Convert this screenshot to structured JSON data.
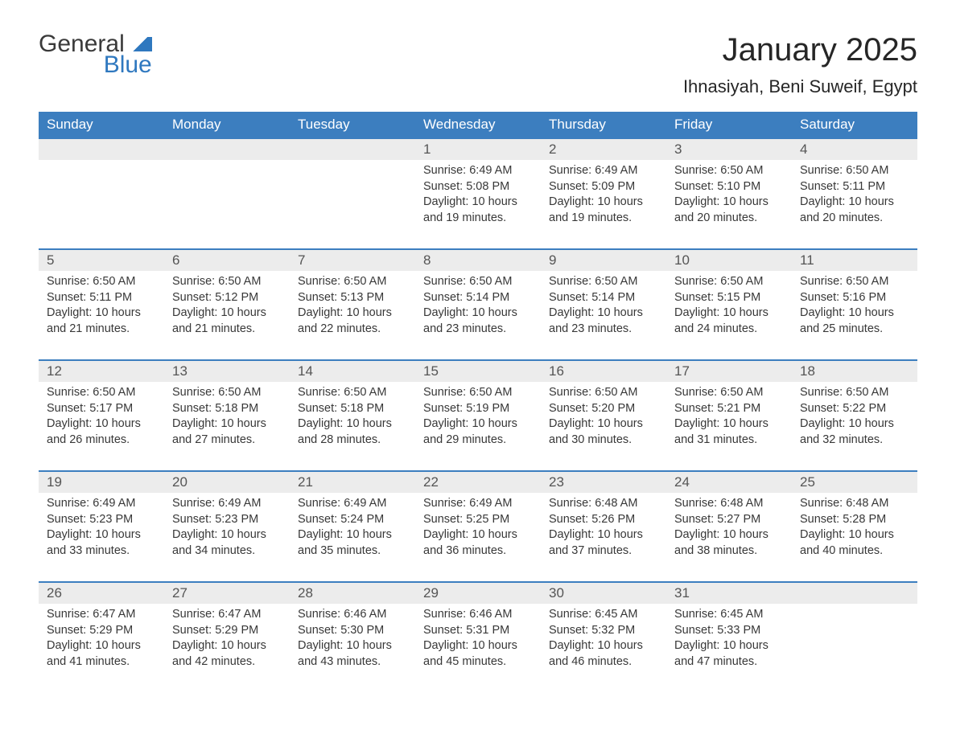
{
  "logo": {
    "line1": "General",
    "line2": "Blue"
  },
  "title": "January 2025",
  "location": "Ihnasiyah, Beni Suweif, Egypt",
  "colors": {
    "header_bg": "#3c7ebf",
    "header_text": "#ffffff",
    "daynum_bg": "#ececec",
    "text": "#333333",
    "logo_blue": "#2f78bf"
  },
  "weekdays": [
    "Sunday",
    "Monday",
    "Tuesday",
    "Wednesday",
    "Thursday",
    "Friday",
    "Saturday"
  ],
  "weeks": [
    [
      {
        "empty": true
      },
      {
        "empty": true
      },
      {
        "empty": true
      },
      {
        "day": "1",
        "sunrise": "Sunrise: 6:49 AM",
        "sunset": "Sunset: 5:08 PM",
        "dl1": "Daylight: 10 hours",
        "dl2": "and 19 minutes."
      },
      {
        "day": "2",
        "sunrise": "Sunrise: 6:49 AM",
        "sunset": "Sunset: 5:09 PM",
        "dl1": "Daylight: 10 hours",
        "dl2": "and 19 minutes."
      },
      {
        "day": "3",
        "sunrise": "Sunrise: 6:50 AM",
        "sunset": "Sunset: 5:10 PM",
        "dl1": "Daylight: 10 hours",
        "dl2": "and 20 minutes."
      },
      {
        "day": "4",
        "sunrise": "Sunrise: 6:50 AM",
        "sunset": "Sunset: 5:11 PM",
        "dl1": "Daylight: 10 hours",
        "dl2": "and 20 minutes."
      }
    ],
    [
      {
        "day": "5",
        "sunrise": "Sunrise: 6:50 AM",
        "sunset": "Sunset: 5:11 PM",
        "dl1": "Daylight: 10 hours",
        "dl2": "and 21 minutes."
      },
      {
        "day": "6",
        "sunrise": "Sunrise: 6:50 AM",
        "sunset": "Sunset: 5:12 PM",
        "dl1": "Daylight: 10 hours",
        "dl2": "and 21 minutes."
      },
      {
        "day": "7",
        "sunrise": "Sunrise: 6:50 AM",
        "sunset": "Sunset: 5:13 PM",
        "dl1": "Daylight: 10 hours",
        "dl2": "and 22 minutes."
      },
      {
        "day": "8",
        "sunrise": "Sunrise: 6:50 AM",
        "sunset": "Sunset: 5:14 PM",
        "dl1": "Daylight: 10 hours",
        "dl2": "and 23 minutes."
      },
      {
        "day": "9",
        "sunrise": "Sunrise: 6:50 AM",
        "sunset": "Sunset: 5:14 PM",
        "dl1": "Daylight: 10 hours",
        "dl2": "and 23 minutes."
      },
      {
        "day": "10",
        "sunrise": "Sunrise: 6:50 AM",
        "sunset": "Sunset: 5:15 PM",
        "dl1": "Daylight: 10 hours",
        "dl2": "and 24 minutes."
      },
      {
        "day": "11",
        "sunrise": "Sunrise: 6:50 AM",
        "sunset": "Sunset: 5:16 PM",
        "dl1": "Daylight: 10 hours",
        "dl2": "and 25 minutes."
      }
    ],
    [
      {
        "day": "12",
        "sunrise": "Sunrise: 6:50 AM",
        "sunset": "Sunset: 5:17 PM",
        "dl1": "Daylight: 10 hours",
        "dl2": "and 26 minutes."
      },
      {
        "day": "13",
        "sunrise": "Sunrise: 6:50 AM",
        "sunset": "Sunset: 5:18 PM",
        "dl1": "Daylight: 10 hours",
        "dl2": "and 27 minutes."
      },
      {
        "day": "14",
        "sunrise": "Sunrise: 6:50 AM",
        "sunset": "Sunset: 5:18 PM",
        "dl1": "Daylight: 10 hours",
        "dl2": "and 28 minutes."
      },
      {
        "day": "15",
        "sunrise": "Sunrise: 6:50 AM",
        "sunset": "Sunset: 5:19 PM",
        "dl1": "Daylight: 10 hours",
        "dl2": "and 29 minutes."
      },
      {
        "day": "16",
        "sunrise": "Sunrise: 6:50 AM",
        "sunset": "Sunset: 5:20 PM",
        "dl1": "Daylight: 10 hours",
        "dl2": "and 30 minutes."
      },
      {
        "day": "17",
        "sunrise": "Sunrise: 6:50 AM",
        "sunset": "Sunset: 5:21 PM",
        "dl1": "Daylight: 10 hours",
        "dl2": "and 31 minutes."
      },
      {
        "day": "18",
        "sunrise": "Sunrise: 6:50 AM",
        "sunset": "Sunset: 5:22 PM",
        "dl1": "Daylight: 10 hours",
        "dl2": "and 32 minutes."
      }
    ],
    [
      {
        "day": "19",
        "sunrise": "Sunrise: 6:49 AM",
        "sunset": "Sunset: 5:23 PM",
        "dl1": "Daylight: 10 hours",
        "dl2": "and 33 minutes."
      },
      {
        "day": "20",
        "sunrise": "Sunrise: 6:49 AM",
        "sunset": "Sunset: 5:23 PM",
        "dl1": "Daylight: 10 hours",
        "dl2": "and 34 minutes."
      },
      {
        "day": "21",
        "sunrise": "Sunrise: 6:49 AM",
        "sunset": "Sunset: 5:24 PM",
        "dl1": "Daylight: 10 hours",
        "dl2": "and 35 minutes."
      },
      {
        "day": "22",
        "sunrise": "Sunrise: 6:49 AM",
        "sunset": "Sunset: 5:25 PM",
        "dl1": "Daylight: 10 hours",
        "dl2": "and 36 minutes."
      },
      {
        "day": "23",
        "sunrise": "Sunrise: 6:48 AM",
        "sunset": "Sunset: 5:26 PM",
        "dl1": "Daylight: 10 hours",
        "dl2": "and 37 minutes."
      },
      {
        "day": "24",
        "sunrise": "Sunrise: 6:48 AM",
        "sunset": "Sunset: 5:27 PM",
        "dl1": "Daylight: 10 hours",
        "dl2": "and 38 minutes."
      },
      {
        "day": "25",
        "sunrise": "Sunrise: 6:48 AM",
        "sunset": "Sunset: 5:28 PM",
        "dl1": "Daylight: 10 hours",
        "dl2": "and 40 minutes."
      }
    ],
    [
      {
        "day": "26",
        "sunrise": "Sunrise: 6:47 AM",
        "sunset": "Sunset: 5:29 PM",
        "dl1": "Daylight: 10 hours",
        "dl2": "and 41 minutes."
      },
      {
        "day": "27",
        "sunrise": "Sunrise: 6:47 AM",
        "sunset": "Sunset: 5:29 PM",
        "dl1": "Daylight: 10 hours",
        "dl2": "and 42 minutes."
      },
      {
        "day": "28",
        "sunrise": "Sunrise: 6:46 AM",
        "sunset": "Sunset: 5:30 PM",
        "dl1": "Daylight: 10 hours",
        "dl2": "and 43 minutes."
      },
      {
        "day": "29",
        "sunrise": "Sunrise: 6:46 AM",
        "sunset": "Sunset: 5:31 PM",
        "dl1": "Daylight: 10 hours",
        "dl2": "and 45 minutes."
      },
      {
        "day": "30",
        "sunrise": "Sunrise: 6:45 AM",
        "sunset": "Sunset: 5:32 PM",
        "dl1": "Daylight: 10 hours",
        "dl2": "and 46 minutes."
      },
      {
        "day": "31",
        "sunrise": "Sunrise: 6:45 AM",
        "sunset": "Sunset: 5:33 PM",
        "dl1": "Daylight: 10 hours",
        "dl2": "and 47 minutes."
      },
      {
        "empty": true
      }
    ]
  ]
}
